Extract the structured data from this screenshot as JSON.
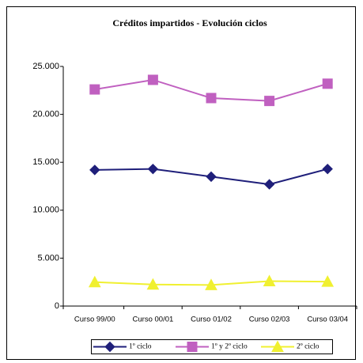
{
  "chart_data": {
    "type": "line",
    "title": "Créditos impartidos - Evolución ciclos",
    "categories": [
      "Curso 99/00",
      "Curso 00/01",
      "Curso 01/02",
      "Curso 02/03",
      "Curso 03/04"
    ],
    "series": [
      {
        "name": "1º ciclo",
        "color": "#1f1f7a",
        "marker": "diamond",
        "values": [
          14200,
          14300,
          13500,
          12700,
          14300
        ]
      },
      {
        "name": "1º y 2º ciclo",
        "color": "#c060c0",
        "marker": "square",
        "values": [
          22600,
          23600,
          21700,
          21400,
          23200
        ]
      },
      {
        "name": "2º ciclo",
        "color": "#f0f030",
        "marker": "triangle",
        "values": [
          2500,
          2250,
          2200,
          2600,
          2550
        ]
      }
    ],
    "ylim": [
      0,
      25000
    ],
    "yticks": [
      0,
      {
        "value": 5000,
        "label": "5.000"
      },
      {
        "value": 10000,
        "label": "10.000"
      },
      {
        "value": 15000,
        "label": "15.000"
      },
      {
        "value": 20000,
        "label": "20.000"
      },
      {
        "value": 25000,
        "label": "25.000"
      }
    ],
    "grid": false,
    "legend": "bottom"
  }
}
